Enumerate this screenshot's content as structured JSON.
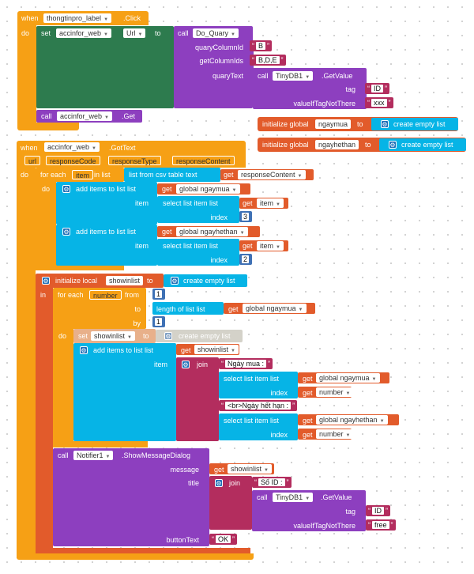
{
  "event1": {
    "when": "when",
    "component": "thongtinpro_label",
    "event": ".Click",
    "do": "do",
    "set_kw": "set",
    "set_component": "accinfor_web",
    "set_property": "Url",
    "to_kw": "to",
    "call_kw": "call",
    "procedure": "Do_Quary",
    "quaryColumnId_label": "quaryColumnId",
    "quaryColumnId_value": "B",
    "getColumnIds_label": "getColumnIds",
    "getColumnIds_value": "B,D,E",
    "quaryText_label": "quaryText",
    "tinydb_call": "call",
    "tinydb_component": "TinyDB1",
    "tinydb_method": ".GetValue",
    "tag_label": "tag",
    "tag_value": "ID",
    "notthere_label": "valueIfTagNotThere",
    "notthere_value": "xxx",
    "web_call": "call",
    "web_component": "accinfor_web",
    "web_method": ".Get"
  },
  "globals": [
    {
      "init": "initialize global",
      "name": "ngaymua",
      "to": "to",
      "value": "create empty list"
    },
    {
      "init": "initialize global",
      "name": "ngayhethan",
      "to": "to",
      "value": "create empty list"
    }
  ],
  "event2": {
    "when": "when",
    "component": "accinfor_web",
    "event": ".GotText",
    "params": [
      "url",
      "responseCode",
      "responseType",
      "responseContent"
    ],
    "do": "do",
    "foreach_kw": "for each",
    "item_var": "item",
    "in_list_kw": "in list",
    "from_csv": "list from csv table  text",
    "get_kw": "get",
    "response_var": "responseContent",
    "inner_do": "do",
    "add_items": "add items to list   list",
    "global_ngaymua": "global ngaymua",
    "global_ngayhethan": "global ngayhethan",
    "item_label": "item",
    "select_item": "select list item  list",
    "index_label": "index",
    "index1": "3",
    "index2": "2",
    "init_local": "initialize local",
    "local_name": "showinlist",
    "local_to": "to",
    "create_empty": "create empty list",
    "in_kw": "in",
    "for_each_number": "for each",
    "number_var": "number",
    "from_kw": "from",
    "from_value": "1",
    "to_kw": "to",
    "length_of": "length of list  list",
    "by_kw": "by",
    "by_value": "1",
    "do_kw": "do",
    "set_kw": "set",
    "set_var": "showinlist",
    "set_to": "to",
    "set_value": "create empty list",
    "add_items2": "add items to list   list",
    "showinlist_var": "showinlist",
    "join_kw": "join",
    "ngaymua_text": "Ngày mua :",
    "select_item2": "select list item  list",
    "number_ref": "number",
    "het_han_text": "<br>Ngày hết hạn :",
    "notifier_call": "call",
    "notifier": "Notifier1",
    "notifier_method": ".ShowMessageDialog",
    "message_label": "message",
    "title_label": "title",
    "soid_text": "Số ID :",
    "tinydb_call": "call",
    "tinydb_component": "TinyDB1",
    "tinydb_method": ".GetValue",
    "tag_label": "tag",
    "tag_value": "ID",
    "notthere_label": "valueIfTagNotThere",
    "notthere_value": "free",
    "buttontext_label": "buttonText",
    "buttontext_value": "OK"
  }
}
